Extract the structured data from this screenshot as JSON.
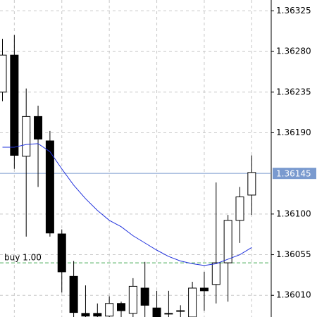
{
  "chart_data": {
    "type": "candlestick",
    "open": [
      1.36235,
      1.36276,
      1.36164,
      1.36208,
      1.36181,
      1.36078,
      1.36031,
      1.3599,
      1.3599,
      1.35987,
      1.36001,
      1.3599,
      1.36018,
      1.35996,
      1.3599,
      1.35993,
      1.35986,
      1.36018,
      1.36022,
      1.36046,
      1.36093,
      1.36121
    ],
    "high": [
      1.36294,
      1.36298,
      1.36239,
      1.3622,
      1.36192,
      1.36083,
      1.36048,
      1.36021,
      1.36001,
      1.36009,
      1.36003,
      1.36029,
      1.36047,
      1.36015,
      1.36015,
      1.35999,
      1.36025,
      1.36036,
      1.36135,
      1.36099,
      1.3613,
      1.36165
    ],
    "low": [
      1.36225,
      1.3615,
      1.36075,
      1.3613,
      1.36075,
      1.36013,
      1.35986,
      1.35986,
      1.35986,
      1.35986,
      1.35986,
      1.35986,
      1.35986,
      1.35986,
      1.35986,
      1.35986,
      1.35986,
      1.35993,
      1.36001,
      1.36003,
      1.36068,
      1.36099
    ],
    "close": [
      1.36276,
      1.36165,
      1.36208,
      1.36183,
      1.36079,
      1.36036,
      1.35991,
      1.35987,
      1.35987,
      1.36001,
      1.35993,
      1.3602,
      1.35999,
      1.35986,
      1.3599,
      1.35993,
      1.36018,
      1.36015,
      1.36046,
      1.36093,
      1.36119,
      1.36146
    ],
    "up_color": "#ffffff",
    "down_color": "#000000",
    "ma": {
      "color": "#2233dd",
      "values": [
        1.36174,
        1.36174,
        1.36177,
        1.36178,
        1.36169,
        1.3615,
        1.36132,
        1.36117,
        1.36104,
        1.36093,
        1.36086,
        1.36076,
        1.36068,
        1.3606,
        1.36053,
        1.36048,
        1.36045,
        1.36043,
        1.36045,
        1.3605,
        1.36055,
        1.36063
      ]
    },
    "current_price": {
      "value": 1.36145,
      "color": "#7a9acf"
    },
    "order_line": {
      "label": "buy 1.00",
      "value": 1.36046,
      "color": "#44aa55"
    },
    "ylim": [
      1.35986,
      1.36337
    ],
    "yticks": [
      1.36325,
      {
        "value": 1.3628,
        "label": "1.36280"
      },
      1.36235,
      {
        "value": 1.3619,
        "label": "1.36190"
      },
      {
        "value": 1.361,
        "label": "1.36100"
      },
      1.36055,
      {
        "value": 1.3601,
        "label": "1.36010"
      }
    ],
    "grid": true
  }
}
